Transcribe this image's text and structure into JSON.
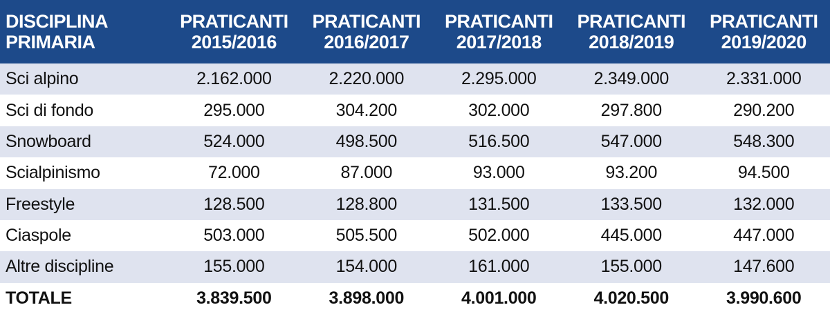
{
  "chart_data": {
    "type": "table",
    "header": {
      "first": [
        "DISCIPLINA",
        "PRIMARIA"
      ],
      "years": [
        [
          "PRATICANTI",
          "2015/2016"
        ],
        [
          "PRATICANTI",
          "2016/2017"
        ],
        [
          "PRATICANTI",
          "2017/2018"
        ],
        [
          "PRATICANTI",
          "2018/2019"
        ],
        [
          "PRATICANTI",
          "2019/2020"
        ]
      ]
    },
    "rows": [
      {
        "label": "Sci alpino",
        "values": [
          "2.162.000",
          "2.220.000",
          "2.295.000",
          "2.349.000",
          "2.331.000"
        ]
      },
      {
        "label": "Sci di fondo",
        "values": [
          "295.000",
          "304.200",
          "302.000",
          "297.800",
          "290.200"
        ]
      },
      {
        "label": "Snowboard",
        "values": [
          "524.000",
          "498.500",
          "516.500",
          "547.000",
          "548.300"
        ]
      },
      {
        "label": "Scialpinismo",
        "values": [
          "72.000",
          "87.000",
          "93.000",
          "93.200",
          "94.500"
        ]
      },
      {
        "label": "Freestyle",
        "values": [
          "128.500",
          "128.800",
          "131.500",
          "133.500",
          "132.000"
        ]
      },
      {
        "label": "Ciaspole",
        "values": [
          "503.000",
          "505.500",
          "502.000",
          "445.000",
          "447.000"
        ]
      },
      {
        "label": "Altre discipline",
        "values": [
          "155.000",
          "154.000",
          "161.000",
          "155.000",
          "147.600"
        ]
      }
    ],
    "total": {
      "label": "TOTALE",
      "values": [
        "3.839.500",
        "3.898.000",
        "4.001.000",
        "4.020.500",
        "3.990.600"
      ]
    }
  },
  "colors": {
    "header_bg": "#1d4a8a",
    "header_text": "#ffffff",
    "row_stripe": "#dfe3ef",
    "row_plain": "#ffffff"
  }
}
